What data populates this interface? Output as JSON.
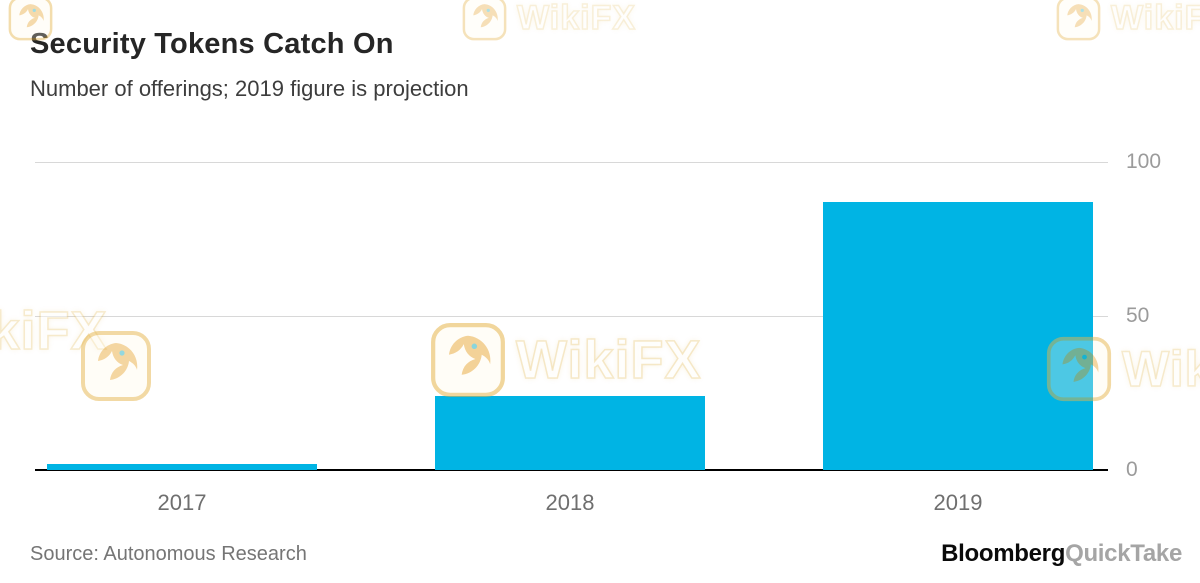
{
  "header": {
    "title": "Security Tokens Catch On",
    "subtitle": "Number of offerings; 2019 figure is projection"
  },
  "chart_data": {
    "type": "bar",
    "title": "Security Tokens Catch On",
    "subtitle": "Number of offerings; 2019 figure is projection",
    "categories": [
      "2017",
      "2018",
      "2019"
    ],
    "values": [
      2,
      24,
      87
    ],
    "xlabel": "",
    "ylabel": "",
    "ylim": [
      0,
      100
    ],
    "yticks": [
      0,
      50,
      100
    ],
    "ytick_labels": [
      "0",
      "50",
      "100"
    ],
    "ytick_side": "right",
    "grid": "horizontal",
    "gridlines_at": [
      50,
      100
    ],
    "legend": "none",
    "bar_color": "#00b4e4"
  },
  "footer": {
    "source": "Source: Autonomous Research",
    "brand_primary": "Bloomberg",
    "brand_secondary": "QuickTake"
  },
  "watermark": {
    "text": "WikiFX"
  },
  "colors": {
    "bar": "#00b4e4",
    "title": "#262626",
    "subtitle": "#3d3d3d",
    "axis_tick": "#9b9b9b",
    "x_label": "#6f6f6f",
    "gridline": "#d8d8d8",
    "baseline": "#000000",
    "source": "#757575",
    "brand_primary": "#0a0a0a",
    "brand_secondary": "#a5a5a5",
    "watermark_gold": "#e6b54c"
  }
}
